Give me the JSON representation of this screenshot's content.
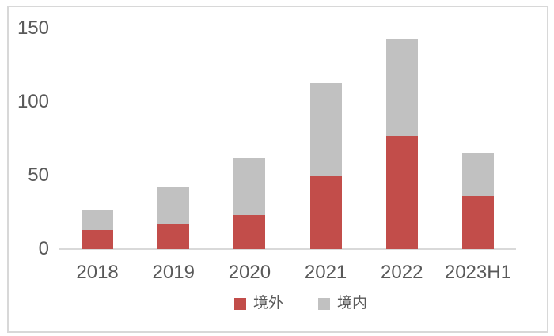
{
  "chart_data": {
    "type": "bar",
    "stacked": true,
    "title": "",
    "categories": [
      "2018",
      "2019",
      "2020",
      "2021",
      "2022",
      "2023H1"
    ],
    "series": [
      {
        "name": "境外",
        "key": "overseas",
        "color": "#c24d4a",
        "values": [
          13,
          17,
          23,
          50,
          77,
          36
        ]
      },
      {
        "name": "境内",
        "key": "domestic",
        "color": "#c1c1c1",
        "values": [
          14,
          25,
          39,
          63,
          66,
          29
        ]
      }
    ],
    "totals": [
      27,
      42,
      62,
      113,
      143,
      65
    ],
    "xlabel": "",
    "ylabel": "",
    "ylim": [
      0,
      150
    ],
    "yticks": [
      0,
      50,
      100,
      150
    ],
    "grid": false,
    "legend_position": "bottom",
    "colors": {
      "axis_line": "#d9d9d9",
      "tick_text": "#595959",
      "legend_text": "#595959",
      "chart_border": "#d8d8d8",
      "background": "#ffffff"
    }
  }
}
